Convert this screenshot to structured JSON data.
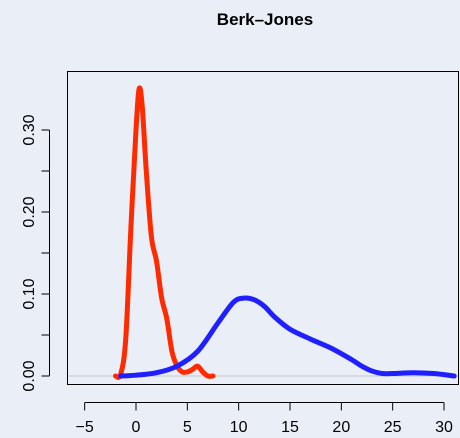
{
  "chart_data": {
    "type": "line",
    "title": "Berk–Jones",
    "xlabel": "",
    "ylabel": "",
    "xlim": [
      -5,
      31
    ],
    "ylim": [
      0,
      0.355
    ],
    "x_ticks": [
      -5,
      0,
      5,
      10,
      15,
      20,
      25,
      30
    ],
    "x_tick_labels": [
      "−5",
      "0",
      "5",
      "10",
      "15",
      "20",
      "25",
      "30"
    ],
    "y_ticks": [
      0.0,
      0.05,
      0.1,
      0.15,
      0.2,
      0.25,
      0.3
    ],
    "y_tick_labels": [
      "0.00",
      "",
      "0.10",
      "",
      "0.20",
      "",
      "0.30"
    ],
    "grid": false,
    "legend": "none",
    "series": [
      {
        "color": "#ff2a00",
        "x": [
          -2.0,
          -1.5,
          -1.0,
          -0.5,
          0.0,
          0.3,
          0.6,
          1.0,
          1.5,
          2.0,
          2.5,
          3.0,
          3.5,
          4.0,
          4.5,
          5.0,
          5.5,
          6.0,
          6.5,
          7.0,
          7.5
        ],
        "y": [
          0.0,
          0.002,
          0.045,
          0.18,
          0.3,
          0.35,
          0.33,
          0.25,
          0.17,
          0.14,
          0.095,
          0.07,
          0.03,
          0.012,
          0.005,
          0.005,
          0.008,
          0.012,
          0.005,
          0.0,
          0.0
        ]
      },
      {
        "color": "#1f1fff",
        "x": [
          -1.5,
          0.0,
          2.0,
          4.0,
          6.0,
          8.0,
          9.5,
          10.5,
          11.5,
          12.5,
          13.5,
          15.0,
          17.0,
          19.0,
          21.0,
          22.0,
          23.0,
          24.0,
          25.0,
          27.0,
          29.0,
          31.0
        ],
        "y": [
          0.0,
          0.001,
          0.004,
          0.012,
          0.03,
          0.065,
          0.09,
          0.095,
          0.093,
          0.085,
          0.072,
          0.057,
          0.045,
          0.034,
          0.02,
          0.012,
          0.006,
          0.003,
          0.003,
          0.004,
          0.003,
          0.0
        ]
      }
    ]
  }
}
